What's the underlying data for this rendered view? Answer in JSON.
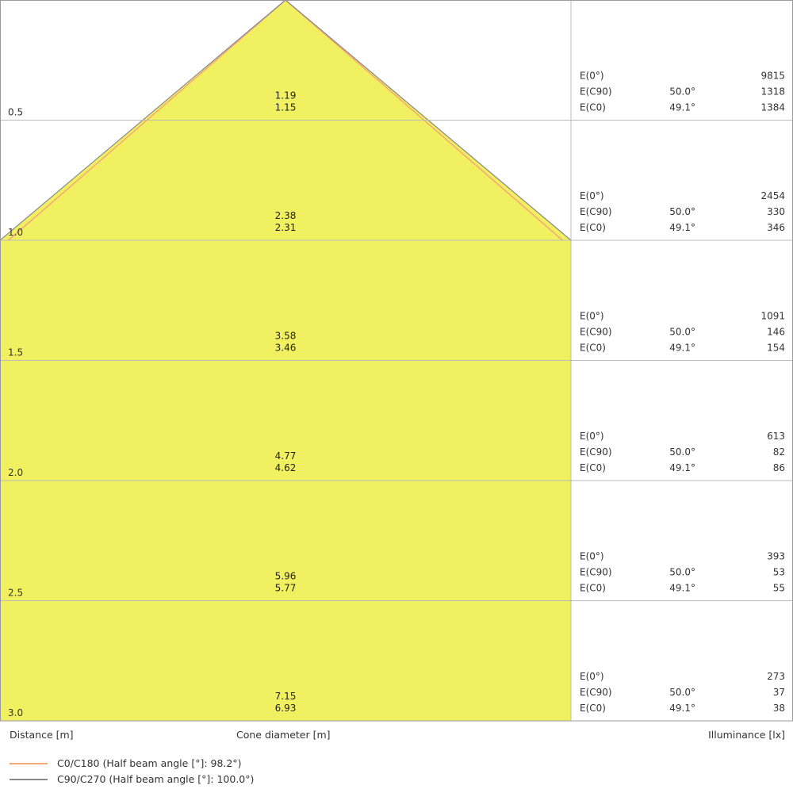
{
  "chart_data": {
    "type": "cone-diagram",
    "distance_label": "Distance [m]",
    "diameter_label": "Cone diameter [m]",
    "illuminance_label": "Illuminance [lx]",
    "distances": [
      "0.5",
      "1.0",
      "1.5",
      "2.0",
      "2.5",
      "3.0"
    ],
    "series": [
      {
        "name": "C90/C270 (Half beam angle [°]: 100.0°)",
        "color": "#888888",
        "half_beam_angle": 100.0,
        "diameters": [
          "1.19",
          "2.38",
          "3.58",
          "4.77",
          "5.96",
          "7.15"
        ]
      },
      {
        "name": "C0/C180 (Half beam angle [°]: 98.2°)",
        "color": "#f5a878",
        "half_beam_angle": 98.2,
        "diameters": [
          "1.15",
          "2.31",
          "3.46",
          "4.62",
          "5.77",
          "6.93"
        ]
      }
    ],
    "illuminance_rows": [
      {
        "e0": "9815",
        "c90_angle": "50.0°",
        "c90": "1318",
        "c0_angle": "49.1°",
        "c0": "1384"
      },
      {
        "e0": "2454",
        "c90_angle": "50.0°",
        "c90": "330",
        "c0_angle": "49.1°",
        "c0": "346"
      },
      {
        "e0": "1091",
        "c90_angle": "50.0°",
        "c90": "146",
        "c0_angle": "49.1°",
        "c0": "154"
      },
      {
        "e0": "613",
        "c90_angle": "50.0°",
        "c90": "82",
        "c0_angle": "49.1°",
        "c0": "86"
      },
      {
        "e0": "393",
        "c90_angle": "50.0°",
        "c90": "53",
        "c0_angle": "49.1°",
        "c0": "55"
      },
      {
        "e0": "273",
        "c90_angle": "50.0°",
        "c90": "37",
        "c0_angle": "49.1°",
        "c0": "38"
      }
    ],
    "row_labels": {
      "e0": "E(0°)",
      "c90": "E(C90)",
      "c0": "E(C0)"
    },
    "fill_color": "#f0f060"
  }
}
